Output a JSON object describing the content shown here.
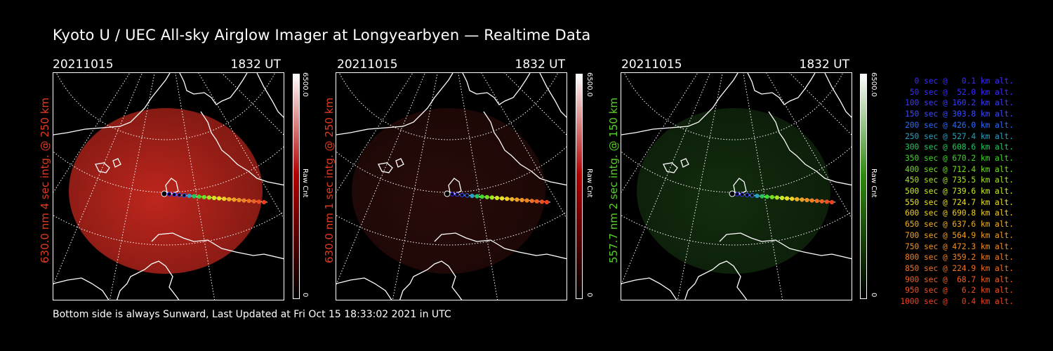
{
  "page": {
    "title": "Kyoto U / UEC All-sky Airglow Imager at Longyearbyen — Realtime Data",
    "footer": "Bottom side is always Sunward, Last Updated at Fri Oct 15 18:33:02 2021 in UTC"
  },
  "panels": [
    {
      "date": "20211015",
      "time": "1832 UT",
      "side_label": "630.0 nm 4 sec intg. @ 250 km",
      "side_color": "#e23a1e",
      "image_color": "#c8281e",
      "image_intensity": 0.95,
      "colorbar_max": "6500.0",
      "colorbar_min": "0",
      "colorbar_label": "Raw Cnt",
      "colorbar_top_color": "#b00000"
    },
    {
      "date": "20211015",
      "time": "1832 UT",
      "side_label": "630.0 nm 1 sec intg. @ 250 km",
      "side_color": "#e23a1e",
      "image_color": "#4a1410",
      "image_intensity": 0.55,
      "colorbar_max": "6500.0",
      "colorbar_min": "0",
      "colorbar_label": "Raw Cnt",
      "colorbar_top_color": "#b00000"
    },
    {
      "date": "20211015",
      "time": "1832 UT",
      "side_label": "557.7 nm 2 sec intg. @ 150 km",
      "side_color": "#5ad02a",
      "image_color": "#1f4a18",
      "image_intensity": 0.6,
      "colorbar_max": "6500.0",
      "colorbar_min": "0",
      "colorbar_label": "Raw Cnt",
      "colorbar_top_color": "#2e8a10"
    }
  ],
  "legend": [
    {
      "text": "0 sec @   0.1 km alt.",
      "color": "#3a2cff"
    },
    {
      "text": "50 sec @  52.0 km alt.",
      "color": "#3a2cff"
    },
    {
      "text": "100 sec @ 160.2 km alt.",
      "color": "#3a3cff"
    },
    {
      "text": "150 sec @ 303.8 km alt.",
      "color": "#3a4cff"
    },
    {
      "text": "200 sec @ 426.0 km alt.",
      "color": "#2a6cff"
    },
    {
      "text": "250 sec @ 527.4 km alt.",
      "color": "#2aa0c0"
    },
    {
      "text": "300 sec @ 608.6 km alt.",
      "color": "#22c860"
    },
    {
      "text": "350 sec @ 670.2 km alt.",
      "color": "#40d82a"
    },
    {
      "text": "400 sec @ 712.4 km alt.",
      "color": "#70e020"
    },
    {
      "text": "450 sec @ 735.5 km alt.",
      "color": "#a8e420"
    },
    {
      "text": "500 sec @ 739.6 km alt.",
      "color": "#d0e820"
    },
    {
      "text": "550 sec @ 724.7 km alt.",
      "color": "#e8e020"
    },
    {
      "text": "600 sec @ 690.8 km alt.",
      "color": "#f0d020"
    },
    {
      "text": "650 sec @ 637.6 km alt.",
      "color": "#f0b020"
    },
    {
      "text": "700 sec @ 564.9 km alt.",
      "color": "#f0a020"
    },
    {
      "text": "750 sec @ 472.3 km alt.",
      "color": "#f09020"
    },
    {
      "text": "800 sec @ 359.2 km alt.",
      "color": "#f08020"
    },
    {
      "text": "850 sec @ 224.9 km alt.",
      "color": "#f07020"
    },
    {
      "text": "900 sec @  68.7 km alt.",
      "color": "#f06020"
    },
    {
      "text": "950 sec @   6.2 km alt.",
      "color": "#f05020"
    },
    {
      "text": "1000 sec @   0.4 km alt.",
      "color": "#f04020"
    }
  ]
}
